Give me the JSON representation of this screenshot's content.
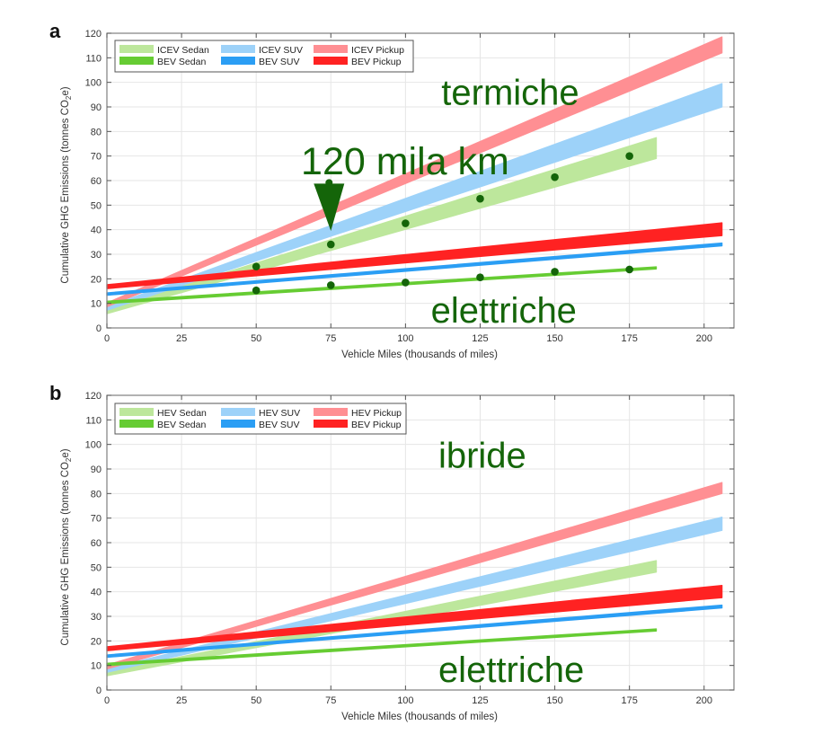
{
  "colors": {
    "sedan_light": "#bde79c",
    "suv_light": "#9dd2f9",
    "pickup_light": "#ff8f93",
    "sedan_dark": "#66cc33",
    "suv_dark": "#2b9ef4",
    "pickup_dark": "#ff2222",
    "annotation": "#146509",
    "grid": "#e6e6e6",
    "axis": "#7f7f7f"
  },
  "chart_data": [
    {
      "panel_label": "a",
      "type": "area",
      "xlabel": "Vehicle Miles (thousands of miles)",
      "ylabel": "Cumulative GHG Emissions (tonnes CO",
      "ylabel_sub": "2",
      "ylabel_end": "e)",
      "xlim": [
        0,
        210
      ],
      "ylim": [
        0,
        120
      ],
      "xticks": [
        0,
        25,
        50,
        75,
        100,
        125,
        150,
        175,
        200
      ],
      "yticks": [
        0,
        10,
        20,
        30,
        40,
        50,
        60,
        70,
        80,
        90,
        100,
        110,
        120
      ],
      "grid": true,
      "legend_position": "top-left",
      "legend": [
        {
          "label": "ICEV Sedan",
          "color_key": "sedan_light"
        },
        {
          "label": "ICEV SUV",
          "color_key": "suv_light"
        },
        {
          "label": "ICEV Pickup",
          "color_key": "pickup_light"
        },
        {
          "label": "BEV Sedan",
          "color_key": "sedan_dark"
        },
        {
          "label": "BEV SUV",
          "color_key": "suv_dark"
        },
        {
          "label": "BEV Pickup",
          "color_key": "pickup_dark"
        }
      ],
      "series": [
        {
          "name": "ICEV Sedan",
          "color_key": "sedan_light",
          "x": [
            0,
            184
          ],
          "lower": [
            5.8,
            69
          ],
          "upper": [
            7.4,
            77.5
          ]
        },
        {
          "name": "ICEV SUV",
          "color_key": "suv_light",
          "x": [
            0,
            206
          ],
          "lower": [
            7.2,
            90
          ],
          "upper": [
            8.6,
            99.5
          ]
        },
        {
          "name": "ICEV Pickup",
          "color_key": "pickup_light",
          "x": [
            0,
            206
          ],
          "lower": [
            8.6,
            112
          ],
          "upper": [
            10.2,
            118.5
          ]
        },
        {
          "name": "BEV Sedan",
          "color_key": "sedan_dark",
          "x": [
            0,
            184
          ],
          "lower": [
            9.9,
            24
          ],
          "upper": [
            10.9,
            24.9
          ]
        },
        {
          "name": "BEV SUV",
          "color_key": "suv_dark",
          "x": [
            0,
            206
          ],
          "lower": [
            13.3,
            33.4
          ],
          "upper": [
            14.3,
            34.6
          ]
        },
        {
          "name": "BEV Pickup",
          "color_key": "pickup_dark",
          "x": [
            0,
            206
          ],
          "lower": [
            16.0,
            37.6
          ],
          "upper": [
            17.6,
            42.8
          ]
        }
      ],
      "markers": {
        "color_key": "annotation",
        "points": [
          {
            "x": 50,
            "y": 25
          },
          {
            "x": 75,
            "y": 34
          },
          {
            "x": 100,
            "y": 42.6
          },
          {
            "x": 125,
            "y": 52.6
          },
          {
            "x": 150,
            "y": 61.4
          },
          {
            "x": 175,
            "y": 70
          },
          {
            "x": 50,
            "y": 15.3
          },
          {
            "x": 75,
            "y": 17.4
          },
          {
            "x": 100,
            "y": 18.5
          },
          {
            "x": 125,
            "y": 20.6
          },
          {
            "x": 150,
            "y": 22.9
          },
          {
            "x": 175,
            "y": 23.8
          }
        ]
      },
      "annotations": [
        {
          "text": "termiche",
          "x": 112,
          "y": 91,
          "size": "large"
        },
        {
          "text": "120 mila km",
          "x": 65,
          "y": 62.5,
          "size": "xlarge"
        },
        {
          "text": "elettriche",
          "x": 108.5,
          "y": 2.2,
          "size": "large"
        }
      ],
      "arrow": {
        "x": 75,
        "y_from": 59.5,
        "y_to": 39.5
      }
    },
    {
      "panel_label": "b",
      "type": "area",
      "xlabel": "Vehicle Miles (thousands of miles)",
      "ylabel": "Cumulative GHG Emissions (tonnes CO",
      "ylabel_sub": "2",
      "ylabel_end": "e)",
      "xlim": [
        0,
        210
      ],
      "ylim": [
        0,
        120
      ],
      "xticks": [
        0,
        25,
        50,
        75,
        100,
        125,
        150,
        175,
        200
      ],
      "yticks": [
        0,
        10,
        20,
        30,
        40,
        50,
        60,
        70,
        80,
        90,
        100,
        110,
        120
      ],
      "grid": true,
      "legend_position": "top-left",
      "legend": [
        {
          "label": "HEV Sedan",
          "color_key": "sedan_light"
        },
        {
          "label": "HEV SUV",
          "color_key": "suv_light"
        },
        {
          "label": "HEV Pickup",
          "color_key": "pickup_light"
        },
        {
          "label": "BEV Sedan",
          "color_key": "sedan_dark"
        },
        {
          "label": "BEV SUV",
          "color_key": "suv_dark"
        },
        {
          "label": "BEV Pickup",
          "color_key": "pickup_dark"
        }
      ],
      "series": [
        {
          "name": "HEV Sedan",
          "color_key": "sedan_light",
          "x": [
            0,
            184
          ],
          "lower": [
            5.8,
            48
          ],
          "upper": [
            7.4,
            52.7
          ]
        },
        {
          "name": "HEV SUV",
          "color_key": "suv_light",
          "x": [
            0,
            206
          ],
          "lower": [
            7.2,
            65
          ],
          "upper": [
            8.6,
            70.4
          ]
        },
        {
          "name": "HEV Pickup",
          "color_key": "pickup_light",
          "x": [
            0,
            206
          ],
          "lower": [
            8.6,
            80
          ],
          "upper": [
            10.2,
            84.5
          ]
        },
        {
          "name": "BEV Sedan",
          "color_key": "sedan_dark",
          "x": [
            0,
            184
          ],
          "lower": [
            9.9,
            24
          ],
          "upper": [
            10.9,
            24.9
          ]
        },
        {
          "name": "BEV SUV",
          "color_key": "suv_dark",
          "x": [
            0,
            206
          ],
          "lower": [
            13.3,
            33.4
          ],
          "upper": [
            14.3,
            34.6
          ]
        },
        {
          "name": "BEV Pickup",
          "color_key": "pickup_dark",
          "x": [
            0,
            206
          ],
          "lower": [
            16.0,
            37.6
          ],
          "upper": [
            17.6,
            42.6
          ]
        }
      ],
      "annotations": [
        {
          "text": "ibride",
          "x": 111,
          "y": 90.5,
          "size": "large"
        },
        {
          "text": "elettriche",
          "x": 111,
          "y": 3.3,
          "size": "large"
        }
      ]
    }
  ]
}
